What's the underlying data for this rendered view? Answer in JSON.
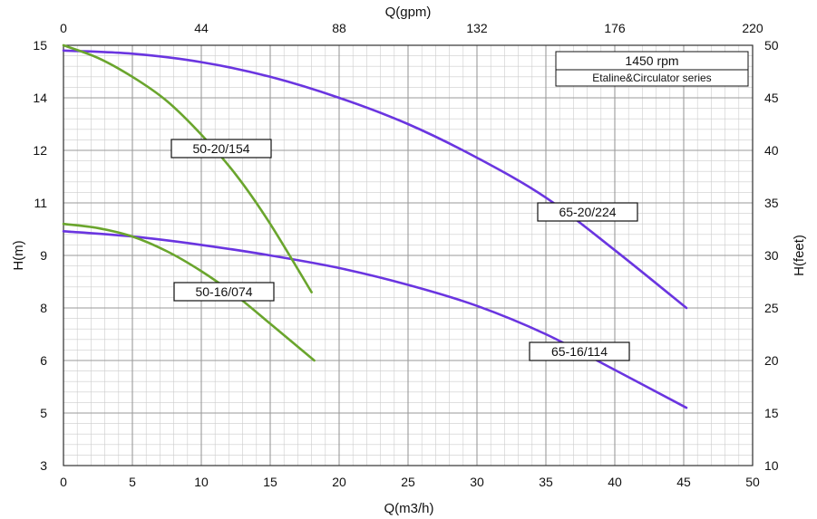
{
  "chart_data": {
    "type": "line",
    "xlabel": "Q(m3/h)",
    "x2label": "Q(gpm)",
    "ylabel": "H(m)",
    "y2label": "H(feet)",
    "xlim": [
      0,
      50
    ],
    "x_ticks": [
      "0",
      "5",
      "10",
      "15",
      "20",
      "25",
      "30",
      "35",
      "40",
      "45",
      "50"
    ],
    "x2lim": [
      0,
      220
    ],
    "x2_ticks": [
      "0",
      "44",
      "88",
      "132",
      "176",
      "220"
    ],
    "y_ticks": [
      "3",
      "5",
      "6",
      "8",
      "9",
      "11",
      "12",
      "14",
      "15"
    ],
    "y2lim": [
      10,
      50
    ],
    "y2_ticks": [
      "10",
      "15",
      "20",
      "25",
      "30",
      "35",
      "40",
      "45",
      "50"
    ],
    "grid": true,
    "legend": {
      "position": "top-right",
      "lines": [
        "1450 rpm",
        "Etaline&Circulator series"
      ]
    },
    "series": [
      {
        "name": "65-20/224",
        "color": "#6a35e0",
        "x": [
          0,
          5,
          10,
          15,
          20,
          25,
          30,
          35,
          40,
          45.2
        ],
        "y_feet": [
          49.5,
          49.2,
          48.4,
          47.0,
          45.0,
          42.5,
          39.3,
          35.5,
          30.5,
          25.0
        ]
      },
      {
        "name": "65-16/114",
        "color": "#6a35e0",
        "x": [
          0,
          5,
          10,
          15,
          20,
          25,
          30,
          35,
          40,
          45.2
        ],
        "y_feet": [
          32.3,
          31.8,
          31.0,
          30.0,
          28.8,
          27.2,
          25.2,
          22.5,
          19.1,
          15.5
        ]
      },
      {
        "name": "50-20/154",
        "color": "#6aa52d",
        "x": [
          0,
          2.5,
          5,
          7.5,
          10,
          12.5,
          15,
          18
        ],
        "y_feet": [
          50.0,
          48.8,
          47.0,
          44.7,
          41.5,
          37.7,
          33.0,
          26.5
        ]
      },
      {
        "name": "50-16/074",
        "color": "#6aa52d",
        "x": [
          0,
          2.5,
          5,
          7.5,
          10,
          12.5,
          15,
          18.2
        ],
        "y_feet": [
          33.0,
          32.6,
          31.8,
          30.4,
          28.5,
          26.2,
          23.5,
          20.0
        ]
      }
    ],
    "curve_labels": [
      "65-20/224",
      "65-16/114",
      "50-20/154",
      "50-16/074"
    ]
  }
}
